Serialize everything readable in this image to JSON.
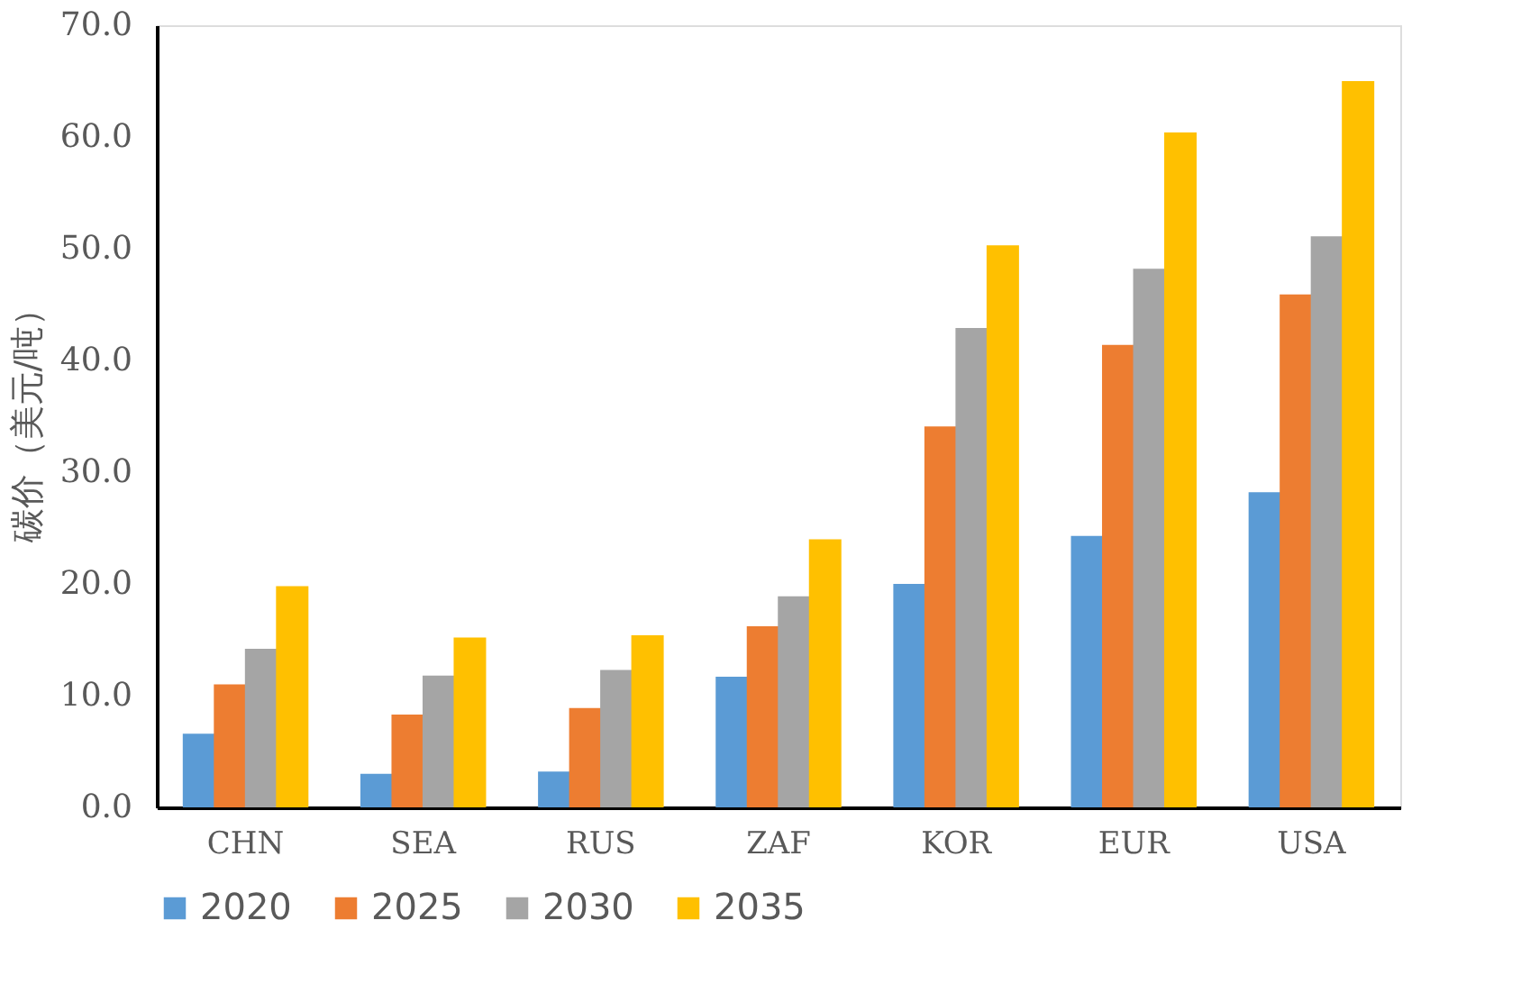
{
  "chart_data": {
    "type": "bar",
    "ylabel": "碳价（美元/吨）",
    "categories": [
      "CHN",
      "SEA",
      "RUS",
      "ZAF",
      "KOR",
      "EUR",
      "USA"
    ],
    "series": [
      {
        "name": "2020",
        "color": "#5b9bd5",
        "values": [
          6.6,
          3.0,
          3.2,
          11.7,
          20.0,
          24.3,
          28.2
        ]
      },
      {
        "name": "2025",
        "color": "#ed7d31",
        "values": [
          11.0,
          8.3,
          8.9,
          16.2,
          34.1,
          41.4,
          45.9
        ]
      },
      {
        "name": "2030",
        "color": "#a5a5a5",
        "values": [
          14.2,
          11.8,
          12.3,
          18.9,
          42.9,
          48.2,
          51.1
        ]
      },
      {
        "name": "2035",
        "color": "#ffc000",
        "values": [
          19.8,
          15.2,
          15.4,
          24.0,
          50.3,
          60.4,
          65.0
        ]
      }
    ],
    "ylim": [
      0,
      70
    ],
    "yticks": [
      {
        "value": 0,
        "label": "0.0"
      },
      {
        "value": 10,
        "label": "10.0"
      },
      {
        "value": 20,
        "label": "20.0"
      },
      {
        "value": 30,
        "label": "30.0"
      },
      {
        "value": 40,
        "label": "40.0"
      },
      {
        "value": 50,
        "label": "50.0"
      },
      {
        "value": 60,
        "label": "60.0"
      },
      {
        "value": 70,
        "label": "70.0"
      }
    ],
    "grid": false,
    "legend": "bottom"
  }
}
